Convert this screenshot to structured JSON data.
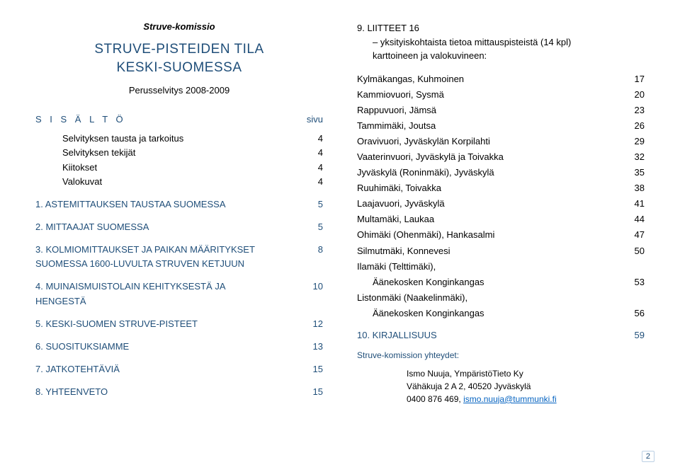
{
  "committee": "Struve-komissio",
  "title_line1": "STRUVE-PISTEIDEN TILA",
  "title_line2": "KESKI-SUOMESSA",
  "subtitle": "Perusselvitys 2008-2009",
  "sisalto_label": "S I S Ä L T Ö",
  "sivu_label": "sivu",
  "toc_plain": [
    {
      "label": "Selvityksen tausta ja tarkoitus",
      "page": "4"
    },
    {
      "label": "Selvityksen tekijät",
      "page": "4"
    },
    {
      "label": "Kiitokset",
      "page": "4"
    },
    {
      "label": "Valokuvat",
      "page": "4"
    }
  ],
  "toc_sections": [
    {
      "label": "1. ASTEMITTAUKSEN TAUSTAA SUOMESSA",
      "page": "5"
    },
    {
      "label": "2. MITTAAJAT SUOMESSA",
      "page": "5"
    },
    {
      "label": "3. KOLMIOMITTAUKSET JA PAIKAN MÄÄRITYKSET SUOMESSA 1600-LUVULTA STRUVEN KETJUUN",
      "page": "8"
    },
    {
      "label": "4. MUINAISMUISTOLAIN KEHITYKSESTÄ JA HENGESTÄ",
      "page": "10"
    },
    {
      "label": "5. KESKI-SUOMEN STRUVE-PISTEET",
      "page": "12"
    },
    {
      "label": "6. SUOSITUKSIAMME",
      "page": "13"
    },
    {
      "label": "7. JATKOTEHTÄVIÄ",
      "page": "15"
    },
    {
      "label": "8. YHTEENVETO",
      "page": "15"
    }
  ],
  "liitteet_num": "9. LIITTEET  16",
  "liitteet_sub1": "– yksityiskohtaista tietoa mittauspisteistä (14 kpl)",
  "liitteet_sub2": "karttoineen ja valokuvineen:",
  "locations": [
    {
      "label": "Kylmäkangas, Kuhmoinen",
      "page": "17",
      "indent": false
    },
    {
      "label": "Kammiovuori, Sysmä",
      "page": "20",
      "indent": false
    },
    {
      "label": "Rappuvuori, Jämsä",
      "page": "23",
      "indent": false
    },
    {
      "label": "Tammimäki, Joutsa",
      "page": "26",
      "indent": false
    },
    {
      "label": "Oravivuori, Jyväskylän Korpilahti",
      "page": "29",
      "indent": false
    },
    {
      "label": "Vaaterinvuori, Jyväskylä ja Toivakka",
      "page": "32",
      "indent": false
    },
    {
      "label": "Jyväskylä (Roninmäki), Jyväskylä",
      "page": "35",
      "indent": false
    },
    {
      "label": "Ruuhimäki, Toivakka",
      "page": "38",
      "indent": false
    },
    {
      "label": "Laajavuori, Jyväskylä",
      "page": "41",
      "indent": false
    },
    {
      "label": "Multamäki, Laukaa",
      "page": "44",
      "indent": false
    },
    {
      "label": "Ohimäki (Ohenmäki), Hankasalmi",
      "page": "47",
      "indent": false
    },
    {
      "label": "Silmutmäki, Konnevesi",
      "page": "50",
      "indent": false
    },
    {
      "label": "Ilamäki (Telttimäki),",
      "page": "",
      "indent": false
    },
    {
      "label": "Äänekosken Konginkangas",
      "page": "53",
      "indent": true
    },
    {
      "label": "Listonmäki (Naakelinmäki),",
      "page": "",
      "indent": false
    },
    {
      "label": "Äänekosken Konginkangas",
      "page": "56",
      "indent": true
    }
  ],
  "kirjallisuus_label": "10. KIRJALLISUUS",
  "kirjallisuus_page": "59",
  "contacts_label": "Struve-komission yhteydet:",
  "contact": {
    "name": "Ismo Nuuja, YmpäristöTieto Ky",
    "addr": "Vähäkuja 2 A 2, 40520 Jyväskylä",
    "phone": "0400 876 469, ",
    "email": "ismo.nuuja@tummunki.fi"
  },
  "page_number": "2",
  "colors": {
    "heading": "#1f4e79",
    "link": "#0563c1",
    "text": "#000000",
    "bg": "#ffffff"
  }
}
